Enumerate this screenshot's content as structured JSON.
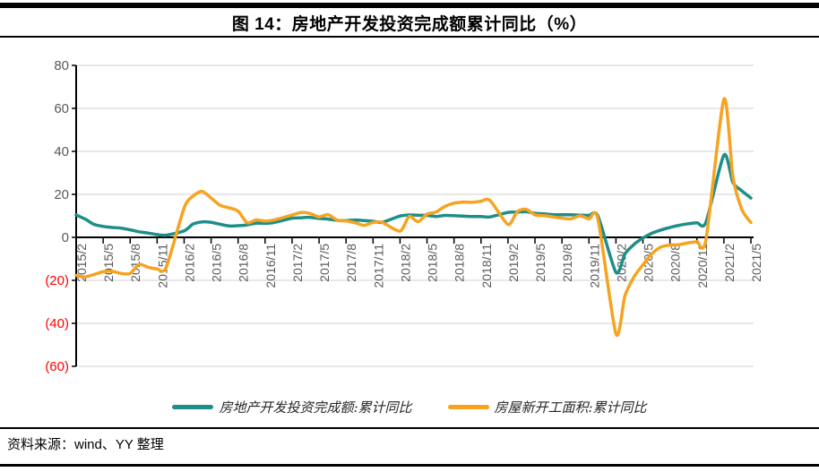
{
  "title": "图 14：房地产开发投资完成额累计同比（%）",
  "source_note": "资料来源：wind、YY 整理",
  "colors": {
    "series1": "#1E8E89",
    "series2": "#F6A320",
    "axis": "#000000",
    "gridline": "#D9D9D9",
    "tick_label": "#595959",
    "negative_label": "#FF0000"
  },
  "chart_data": {
    "type": "line",
    "title": "图 14：房地产开发投资完成额累计同比（%）",
    "xlabel": "",
    "ylabel": "",
    "ylim": [
      -60,
      80
    ],
    "grid": "horizontal",
    "legend_position": "bottom",
    "y_ticks": [
      {
        "value": 80,
        "label": "80"
      },
      {
        "value": 60,
        "label": "60"
      },
      {
        "value": 40,
        "label": "40"
      },
      {
        "value": 20,
        "label": "20"
      },
      {
        "value": 0,
        "label": "0"
      },
      {
        "value": -20,
        "label": "(20)"
      },
      {
        "value": -40,
        "label": "(40)"
      },
      {
        "value": -60,
        "label": "(60)"
      }
    ],
    "x_tick_labels": [
      "2015/2",
      "2015/5",
      "2015/8",
      "2015/11",
      "2016/2",
      "2016/5",
      "2016/8",
      "2016/11",
      "2017/2",
      "2017/5",
      "2017/8",
      "2017/11",
      "2018/2",
      "2018/5",
      "2018/8",
      "2018/11",
      "2019/2",
      "2019/5",
      "2019/8",
      "2019/11",
      "2020/2",
      "2020/5",
      "2020/8",
      "2020/11",
      "2021/2",
      "2021/5"
    ],
    "x": [
      "2015/2",
      "2015/3",
      "2015/4",
      "2015/5",
      "2015/6",
      "2015/7",
      "2015/8",
      "2015/9",
      "2015/10",
      "2015/11",
      "2015/12",
      "2016/2",
      "2016/3",
      "2016/4",
      "2016/5",
      "2016/6",
      "2016/7",
      "2016/8",
      "2016/9",
      "2016/10",
      "2016/11",
      "2016/12",
      "2017/2",
      "2017/3",
      "2017/4",
      "2017/5",
      "2017/6",
      "2017/7",
      "2017/8",
      "2017/9",
      "2017/10",
      "2017/11",
      "2017/12",
      "2018/2",
      "2018/3",
      "2018/4",
      "2018/5",
      "2018/6",
      "2018/7",
      "2018/8",
      "2018/9",
      "2018/10",
      "2018/11",
      "2018/12",
      "2019/2",
      "2019/3",
      "2019/4",
      "2019/5",
      "2019/6",
      "2019/7",
      "2019/8",
      "2019/9",
      "2019/10",
      "2019/11",
      "2019/12",
      "2020/2",
      "2020/3",
      "2020/4",
      "2020/5",
      "2020/6",
      "2020/7",
      "2020/8",
      "2020/9",
      "2020/10",
      "2020/11",
      "2020/12",
      "2021/2",
      "2021/3",
      "2021/4",
      "2021/5"
    ],
    "series": [
      {
        "name": "房地产开发投资完成额:累计同比",
        "color_key": "series1",
        "values": [
          10.4,
          8.5,
          6.0,
          5.1,
          4.6,
          4.3,
          3.5,
          2.6,
          2.0,
          1.3,
          1.0,
          3.0,
          6.2,
          7.2,
          7.0,
          6.1,
          5.3,
          5.4,
          5.8,
          6.6,
          6.5,
          6.9,
          8.9,
          9.1,
          9.3,
          8.8,
          8.5,
          7.9,
          7.8,
          8.1,
          7.8,
          7.5,
          7.0,
          9.9,
          10.4,
          10.3,
          10.2,
          9.7,
          10.2,
          10.1,
          9.9,
          9.7,
          9.7,
          9.5,
          11.6,
          11.8,
          11.9,
          11.2,
          10.9,
          10.6,
          10.5,
          10.5,
          10.3,
          10.2,
          9.9,
          -16.3,
          -7.7,
          -3.3,
          -0.3,
          1.9,
          3.4,
          4.6,
          5.6,
          6.3,
          6.8,
          7.0,
          38.3,
          25.6,
          21.6,
          18.3
        ]
      },
      {
        "name": "房屋新开工面积:累计同比",
        "color_key": "series2",
        "values": [
          -17.7,
          -18.4,
          -17.3,
          -16.0,
          -15.8,
          -16.8,
          -16.8,
          -12.6,
          -13.9,
          -14.7,
          -14.0,
          13.7,
          19.2,
          21.4,
          18.3,
          14.9,
          13.7,
          12.2,
          6.8,
          8.1,
          7.6,
          8.1,
          10.4,
          11.6,
          11.1,
          9.5,
          10.6,
          8.0,
          7.6,
          6.8,
          5.6,
          6.9,
          7.0,
          2.9,
          9.7,
          7.3,
          10.8,
          11.8,
          14.4,
          15.9,
          16.4,
          16.3,
          16.8,
          17.2,
          6.0,
          11.9,
          13.1,
          10.5,
          10.1,
          9.5,
          8.9,
          8.6,
          10.0,
          8.6,
          8.5,
          -44.9,
          -27.2,
          -18.4,
          -12.8,
          -7.6,
          -4.5,
          -3.6,
          -3.4,
          -2.6,
          -2.0,
          -1.2,
          64.3,
          28.2,
          12.9,
          6.9
        ]
      }
    ]
  }
}
